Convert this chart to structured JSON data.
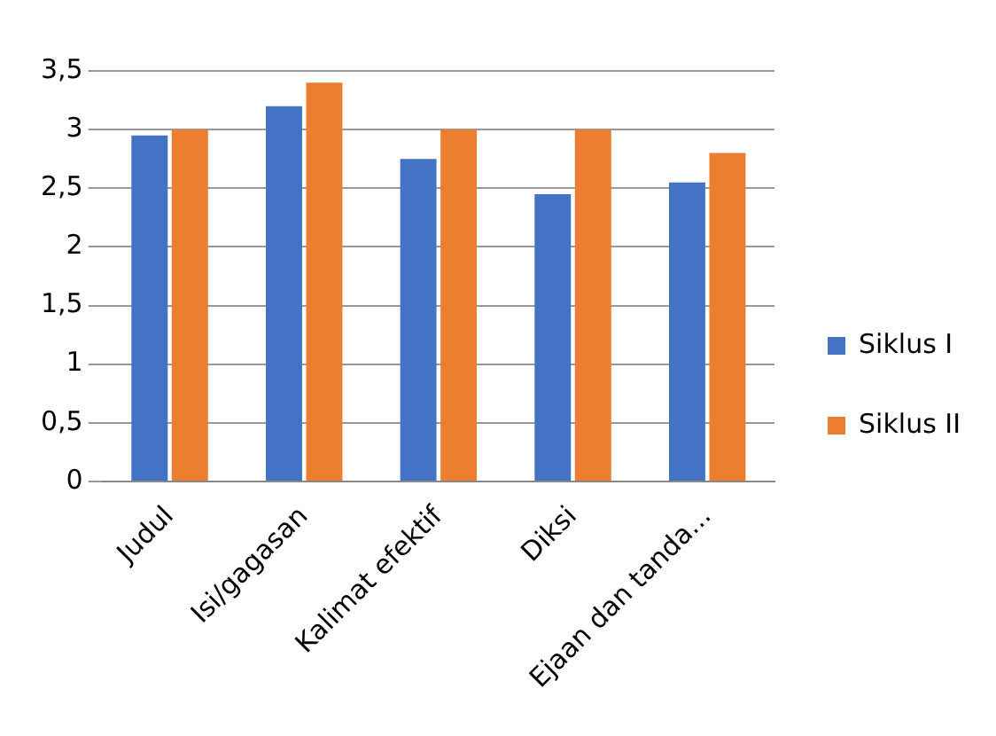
{
  "chart_data": {
    "type": "bar",
    "categories": [
      "Judul",
      "Isi/gagasan",
      "Kalimat efektif",
      "Diksi",
      "Ejaan dan tanda..."
    ],
    "series": [
      {
        "name": "Siklus I",
        "color": "#4472c4",
        "values": [
          2.95,
          3.2,
          2.75,
          2.45,
          2.55
        ]
      },
      {
        "name": "Siklus II",
        "color": "#ed7d31",
        "values": [
          3.0,
          3.4,
          3.0,
          3.0,
          2.8
        ]
      }
    ],
    "ylim": [
      0,
      3.5
    ],
    "yticks": [
      0,
      {
        "value": 0.5,
        "label": "0,5"
      },
      1,
      {
        "value": 1.5,
        "label": "1,5"
      },
      2,
      {
        "value": 2.5,
        "label": "2,5"
      },
      3,
      {
        "value": 3.5,
        "label": "3,5"
      }
    ],
    "grid": "y",
    "legend": "right"
  }
}
